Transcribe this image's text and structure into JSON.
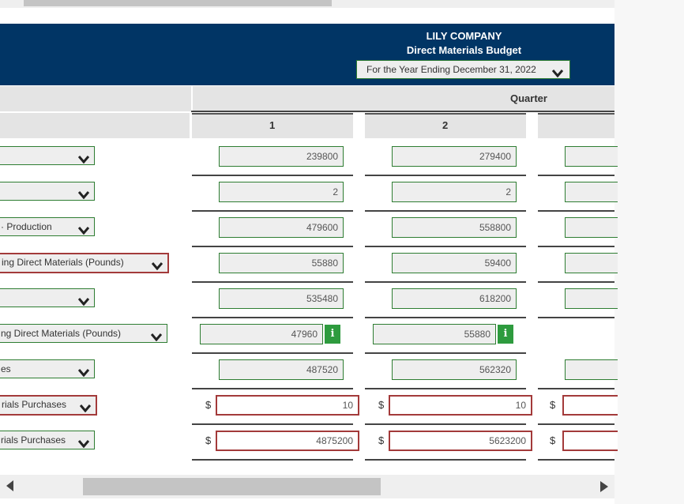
{
  "header": {
    "company": "LILY COMPANY",
    "title": "Direct Materials Budget",
    "period": "For the Year Ending December 31, 2022"
  },
  "table": {
    "group_label": "Quarter",
    "columns": [
      "1",
      "2"
    ],
    "currency_symbol": "$",
    "info_label": "i",
    "rows": [
      {
        "label": "",
        "q1": "239800",
        "q2": "279400"
      },
      {
        "label": "",
        "q1": "2",
        "q2": "2"
      },
      {
        "label": "· Production",
        "q1": "479600",
        "q2": "558800"
      },
      {
        "label": "ing Direct Materials (Pounds)",
        "q1": "55880",
        "q2": "59400"
      },
      {
        "label": "",
        "q1": "535480",
        "q2": "618200"
      },
      {
        "label": "ng Direct Materials (Pounds)",
        "q1": "47960",
        "q2": "55880"
      },
      {
        "label": "es",
        "q1": "487520",
        "q2": "562320"
      },
      {
        "label": "rials Purchases",
        "q1": "10",
        "q2": "10"
      },
      {
        "label": "rials Purchases",
        "q1": "4875200",
        "q2": "5623200"
      }
    ]
  },
  "colors": {
    "header": "#013565",
    "valid_border": "#2e7d32",
    "error_border": "#a33a3a",
    "info": "#2e9b3e"
  },
  "icons": {
    "select": "chevron-down-icon",
    "info": "info-icon",
    "scroll_left": "arrow-left-icon",
    "scroll_right": "arrow-right-icon"
  }
}
